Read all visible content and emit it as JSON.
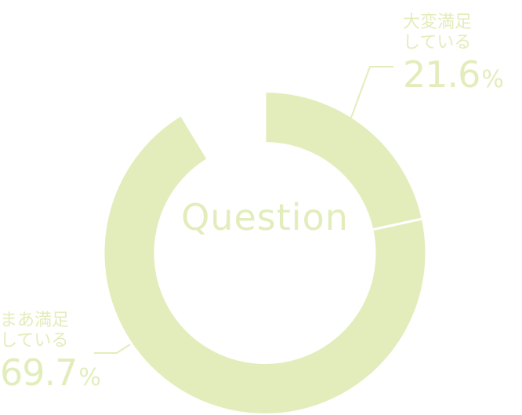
{
  "chart_data": {
    "type": "pie",
    "variant": "donut",
    "center_label": "Question",
    "slices": [
      {
        "label": "大変満足\nしている",
        "value": 21.6
      },
      {
        "label": "まあ満足\nしている",
        "value": 69.7
      }
    ],
    "unit": "%",
    "color": "#e3edbb",
    "start": "top, clockwise"
  }
}
